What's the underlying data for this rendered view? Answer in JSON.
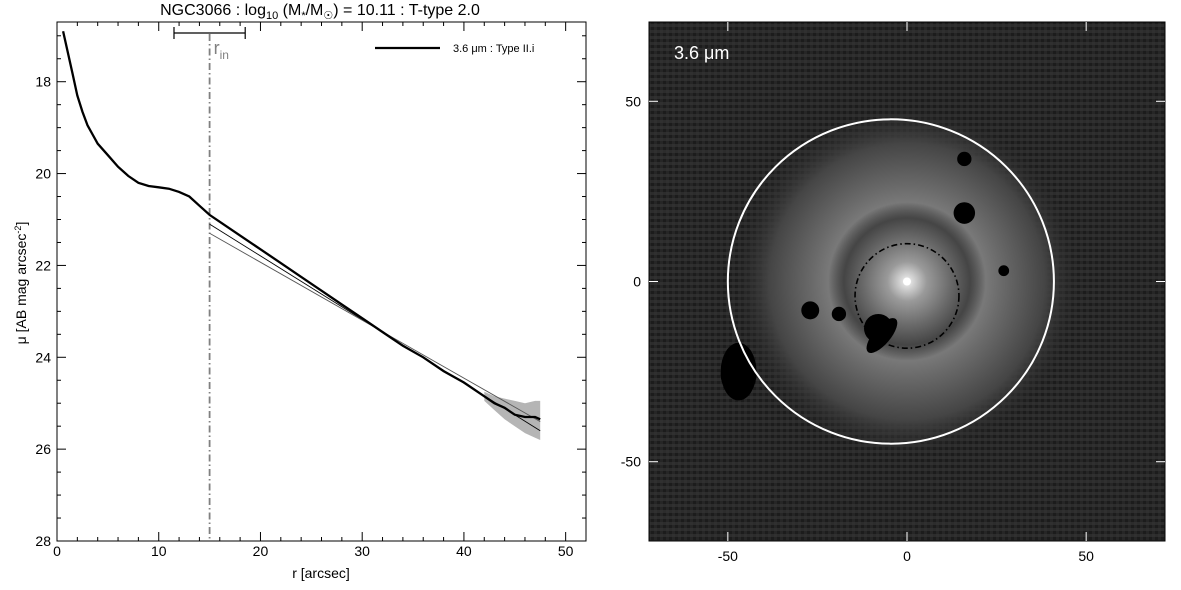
{
  "chart_data": [
    {
      "type": "line",
      "title": {
        "galaxy": "NGC3066",
        "log_text": "log",
        "log_sub": "10",
        "mass_paren_open": "(M",
        "mass_star_sub": "*",
        "slash": "/M",
        "sun_symbol": "☉",
        "value_part": ") = 10.11 : T-type 2.0",
        "sep": " : "
      },
      "xlabel": "r [arcsec]",
      "ylabel": {
        "prefix": "μ [AB mag arcsec",
        "sup": "-2",
        "suffix": "]"
      },
      "xlim": [
        0,
        52
      ],
      "ylim": [
        28,
        16.7
      ],
      "y_inverted": true,
      "xticks": [
        0,
        10,
        20,
        30,
        40,
        50
      ],
      "yticks": [
        18,
        20,
        22,
        24,
        26,
        28
      ],
      "legend": {
        "label": "3.6 μm : Type II.i",
        "position": "top-right"
      },
      "r_in": {
        "label_main": "r",
        "label_sub": "in",
        "x": 15.0,
        "range": [
          11.5,
          18.5
        ],
        "color": "#808080"
      },
      "series": [
        {
          "name": "3.6 μm : Type II.i",
          "x": [
            0.6,
            1.0,
            1.5,
            2.0,
            2.5,
            3.0,
            3.5,
            4.0,
            5.0,
            6.0,
            7.0,
            8.0,
            9.0,
            10.0,
            11.0,
            12.0,
            13.0,
            14.0,
            15.0,
            16.0,
            18.0,
            20.0,
            22.0,
            24.0,
            26.0,
            28.0,
            30.0,
            32.0,
            34.0,
            36.0,
            38.0,
            40.0,
            42.0,
            43.0,
            44.0,
            45.0,
            46.0,
            47.0,
            47.5
          ],
          "y": [
            16.9,
            17.3,
            17.8,
            18.3,
            18.65,
            18.95,
            19.15,
            19.35,
            19.6,
            19.85,
            20.05,
            20.2,
            20.27,
            20.3,
            20.33,
            20.4,
            20.5,
            20.7,
            20.9,
            21.05,
            21.35,
            21.65,
            21.95,
            22.25,
            22.55,
            22.85,
            23.15,
            23.45,
            23.75,
            24.0,
            24.3,
            24.55,
            24.85,
            25.0,
            25.1,
            25.25,
            25.3,
            25.3,
            25.35
          ]
        }
      ],
      "fit_lines": [
        {
          "x": [
            15.0,
            47.5
          ],
          "y": [
            21.1,
            25.6
          ]
        },
        {
          "x": [
            15.0,
            47.5
          ],
          "y": [
            21.3,
            25.4
          ]
        }
      ],
      "uncertainty_band": {
        "x": [
          42,
          43,
          44,
          45,
          46,
          47,
          47.5
        ],
        "y_low": [
          24.75,
          24.85,
          24.9,
          24.95,
          25.0,
          24.95,
          24.95
        ],
        "y_high": [
          24.95,
          25.15,
          25.35,
          25.5,
          25.65,
          25.75,
          25.8
        ]
      }
    },
    {
      "type": "heatmap",
      "label": "3.6 μm",
      "xlim": [
        -72,
        72
      ],
      "ylim": [
        -72,
        72
      ],
      "xticks": [
        -50,
        0,
        50
      ],
      "yticks": [
        50,
        0,
        -50
      ],
      "tick_labels_x": [
        "-50",
        "0",
        "50"
      ],
      "tick_labels_y": [
        "50",
        "0",
        "-50"
      ],
      "outer_ellipse": {
        "center": [
          -4.5,
          0
        ],
        "rx": 45.5,
        "ry": 45,
        "color": "#ffffff"
      },
      "inner_ellipse": {
        "center": [
          0,
          -4
        ],
        "rx": 14.5,
        "ry": 14.5,
        "color": "#000000"
      },
      "masks": [
        {
          "x": 16,
          "y": 19,
          "r": 3
        },
        {
          "x": 16,
          "y": 34,
          "r": 2
        },
        {
          "x": 27,
          "y": 3,
          "r": 1.5
        },
        {
          "x": -27,
          "y": -8,
          "r": 2.5
        },
        {
          "x": -19,
          "y": -9,
          "r": 2
        },
        {
          "x": -8,
          "y": -13,
          "r": 4
        },
        {
          "x": -47,
          "y": -26,
          "r": 5
        }
      ]
    }
  ]
}
